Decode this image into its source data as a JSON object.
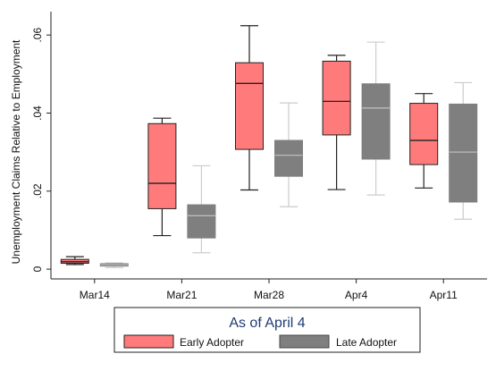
{
  "chart_data": {
    "type": "box",
    "ylabel": "Unemployment Claims Relative to Employment",
    "xlabel": "",
    "categories": [
      "Mar14",
      "Mar21",
      "Mar28",
      "Apr4",
      "Apr11"
    ],
    "ylim": [
      -0.0025,
      0.066
    ],
    "yticks": [
      0,
      0.02,
      0.04,
      0.06
    ],
    "ytick_labels": [
      "0",
      ".02",
      ".04",
      ".06"
    ],
    "grid": false,
    "legend": {
      "title": "As of April 4",
      "position": "bottom",
      "entries": [
        "Early Adopter",
        "Late Adopter"
      ]
    },
    "series": [
      {
        "name": "Early Adopter",
        "color": "#ff7b7b",
        "boxes": [
          {
            "whisker_low": 0.0012,
            "q1": 0.0015,
            "median": 0.0019,
            "q3": 0.0025,
            "whisker_high": 0.0032
          },
          {
            "whisker_low": 0.0086,
            "q1": 0.0155,
            "median": 0.022,
            "q3": 0.0373,
            "whisker_high": 0.0387
          },
          {
            "whisker_low": 0.0203,
            "q1": 0.0307,
            "median": 0.0476,
            "q3": 0.0529,
            "whisker_high": 0.0624
          },
          {
            "whisker_low": 0.0204,
            "q1": 0.0344,
            "median": 0.043,
            "q3": 0.0533,
            "whisker_high": 0.0548
          },
          {
            "whisker_low": 0.0208,
            "q1": 0.0268,
            "median": 0.033,
            "q3": 0.0425,
            "whisker_high": 0.045
          }
        ]
      },
      {
        "name": "Late Adopter",
        "color": "#7f7f7f",
        "boxes": [
          {
            "whisker_low": 0.0004,
            "q1": 0.0008,
            "median": 0.0011,
            "q3": 0.0014,
            "whisker_high": 0.0016
          },
          {
            "whisker_low": 0.0042,
            "q1": 0.008,
            "median": 0.0137,
            "q3": 0.0165,
            "whisker_high": 0.0265
          },
          {
            "whisker_low": 0.016,
            "q1": 0.0238,
            "median": 0.0292,
            "q3": 0.033,
            "whisker_high": 0.0426
          },
          {
            "whisker_low": 0.019,
            "q1": 0.0282,
            "median": 0.0413,
            "q3": 0.0475,
            "whisker_high": 0.0582
          },
          {
            "whisker_low": 0.0128,
            "q1": 0.0172,
            "median": 0.03,
            "q3": 0.0423,
            "whisker_high": 0.0478
          }
        ]
      }
    ]
  }
}
